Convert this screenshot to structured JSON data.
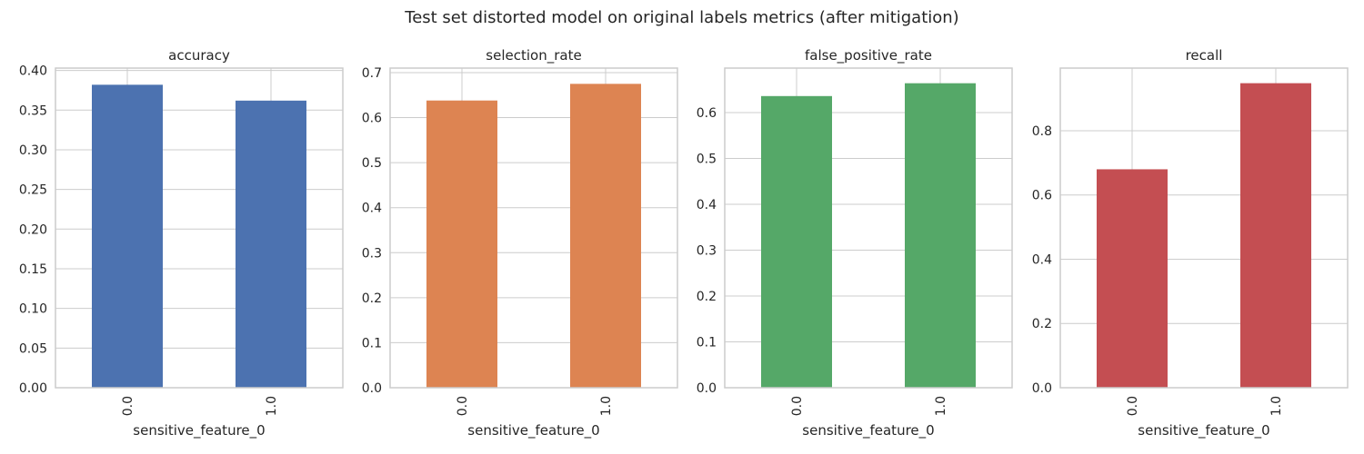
{
  "figure": {
    "suptitle": "Test set distorted model on original labels metrics (after mitigation)"
  },
  "chart_data": [
    {
      "type": "bar",
      "title": "accuracy",
      "xlabel": "sensitive_feature_0",
      "ylabel": "",
      "categories": [
        "0.0",
        "1.0"
      ],
      "values": [
        0.382,
        0.362
      ],
      "ylim": [
        0,
        0.403
      ],
      "yticks": [
        0.0,
        0.05,
        0.1,
        0.15,
        0.2,
        0.25,
        0.3,
        0.35,
        0.4
      ],
      "ytick_labels": [
        "0.00",
        "0.05",
        "0.10",
        "0.15",
        "0.20",
        "0.25",
        "0.30",
        "0.35",
        "0.40"
      ],
      "color": "#4c72b0",
      "grid": true,
      "legend": "none"
    },
    {
      "type": "bar",
      "title": "selection_rate",
      "xlabel": "sensitive_feature_0",
      "ylabel": "",
      "categories": [
        "0.0",
        "1.0"
      ],
      "values": [
        0.638,
        0.675
      ],
      "ylim": [
        0,
        0.71
      ],
      "yticks": [
        0.0,
        0.1,
        0.2,
        0.3,
        0.4,
        0.5,
        0.6,
        0.7
      ],
      "ytick_labels": [
        "0.0",
        "0.1",
        "0.2",
        "0.3",
        "0.4",
        "0.5",
        "0.6",
        "0.7"
      ],
      "color": "#dd8452",
      "grid": true,
      "legend": "none"
    },
    {
      "type": "bar",
      "title": "false_positive_rate",
      "xlabel": "sensitive_feature_0",
      "ylabel": "",
      "categories": [
        "0.0",
        "1.0"
      ],
      "values": [
        0.636,
        0.664
      ],
      "ylim": [
        0,
        0.697
      ],
      "yticks": [
        0.0,
        0.1,
        0.2,
        0.3,
        0.4,
        0.5,
        0.6
      ],
      "ytick_labels": [
        "0.0",
        "0.1",
        "0.2",
        "0.3",
        "0.4",
        "0.5",
        "0.6"
      ],
      "color": "#55a868",
      "grid": true,
      "legend": "none"
    },
    {
      "type": "bar",
      "title": "recall",
      "xlabel": "sensitive_feature_0",
      "ylabel": "",
      "categories": [
        "0.0",
        "1.0"
      ],
      "values": [
        0.68,
        0.948
      ],
      "ylim": [
        0,
        0.995
      ],
      "yticks": [
        0.0,
        0.2,
        0.4,
        0.6,
        0.8
      ],
      "ytick_labels": [
        "0.0",
        "0.2",
        "0.4",
        "0.6",
        "0.8"
      ],
      "color": "#c44e52",
      "grid": true,
      "legend": "none"
    }
  ]
}
